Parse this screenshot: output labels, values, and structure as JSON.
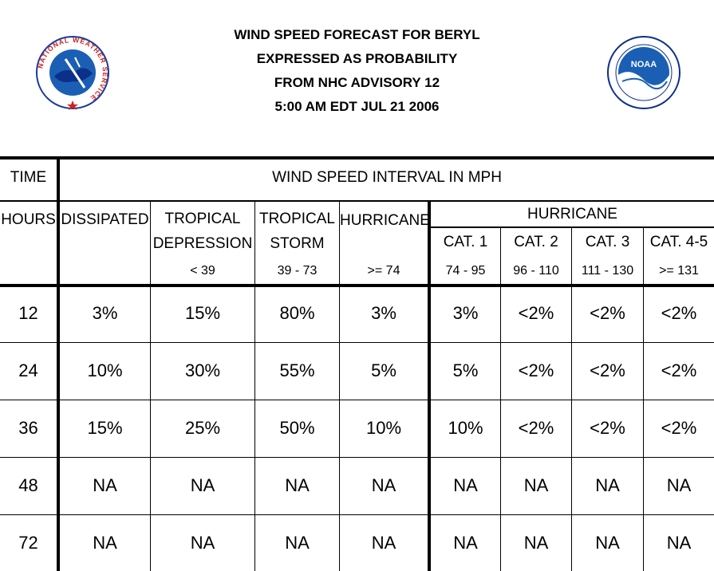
{
  "title": {
    "line1": "WIND SPEED FORECAST FOR BERYL",
    "line2": "EXPRESSED AS PROBABILITY",
    "line3": "FROM NHC ADVISORY   12",
    "line4": "5:00 AM EDT JUL 21 2006"
  },
  "logos": {
    "left": {
      "icon": "nws-logo",
      "text": "NATIONAL WEATHER SERVICE"
    },
    "right": {
      "icon": "noaa-logo",
      "text": "NOAA"
    }
  },
  "header": {
    "time": "TIME",
    "interval": "WIND SPEED INTERVAL IN MPH",
    "hours": "HOURS",
    "dissipated": "DISSIPATED",
    "td_l1": "TROPICAL",
    "td_l2": "DEPRESSION",
    "td_range": "< 39",
    "ts_l1": "TROPICAL",
    "ts_l2": "STORM",
    "ts_range": "39 - 73",
    "hurricane": "HURRICANE",
    "hurricane_range": ">= 74",
    "hurricane_group": "HURRICANE",
    "cat1": "CAT. 1",
    "cat1_range": "74 - 95",
    "cat2": "CAT. 2",
    "cat2_range": "96 - 110",
    "cat3": "CAT. 3",
    "cat3_range": "111 - 130",
    "cat45": "CAT. 4-5",
    "cat45_range": ">= 131"
  },
  "rows": [
    [
      "12",
      "3%",
      "15%",
      "80%",
      "3%",
      "3%",
      "<2%",
      "<2%",
      "<2%"
    ],
    [
      "24",
      "10%",
      "30%",
      "55%",
      "5%",
      "5%",
      "<2%",
      "<2%",
      "<2%"
    ],
    [
      "36",
      "15%",
      "25%",
      "50%",
      "10%",
      "10%",
      "<2%",
      "<2%",
      "<2%"
    ],
    [
      "48",
      "NA",
      "NA",
      "NA",
      "NA",
      "NA",
      "NA",
      "NA",
      "NA"
    ],
    [
      "72",
      "NA",
      "NA",
      "NA",
      "NA",
      "NA",
      "NA",
      "NA",
      "NA"
    ]
  ],
  "colors": {
    "noaa_blue": "#1a5fb4",
    "noaa_dark": "#0c2f8a",
    "nws_red": "#d02020"
  }
}
